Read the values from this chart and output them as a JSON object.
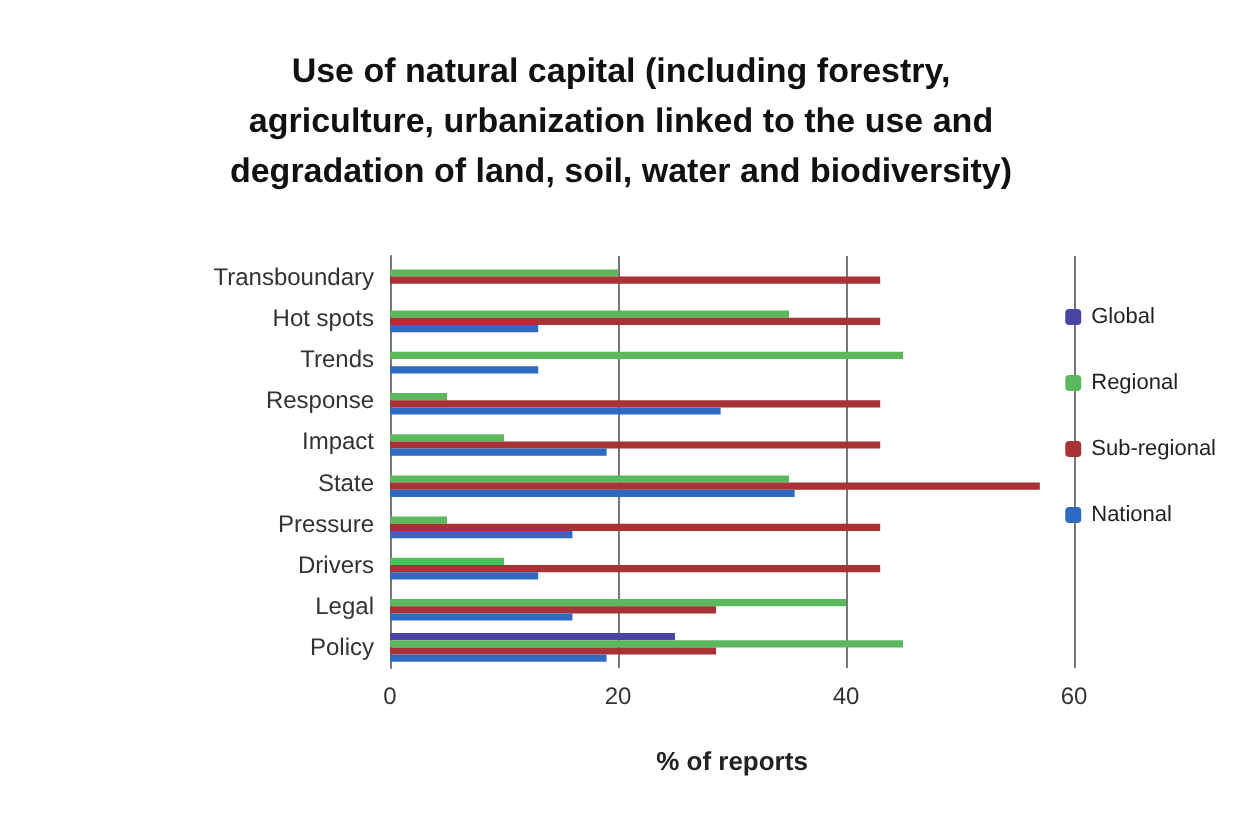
{
  "chart_data": {
    "type": "bar",
    "orientation": "horizontal",
    "title": "Use of natural capital (including forestry,\nagriculture, urbanization linked to the use and\ndegradation of land, soil, water and biodiversity)",
    "xlabel": "% of reports",
    "categories": [
      "Transboundary",
      "Hot spots",
      "Trends",
      "Response",
      "Impact",
      "State",
      "Pressure",
      "Drivers",
      "Legal",
      "Policy"
    ],
    "series": [
      {
        "name": "Global",
        "color": "#4a44a6",
        "values": [
          0,
          0,
          0,
          0,
          0,
          0,
          0,
          0,
          0,
          25
        ]
      },
      {
        "name": "Regional",
        "color": "#5cb85c",
        "values": [
          20,
          35,
          45,
          5,
          10,
          35,
          5,
          10,
          40,
          45
        ]
      },
      {
        "name": "Sub-regional",
        "color": "#a83236",
        "values": [
          43,
          43,
          0,
          43,
          43,
          57,
          43,
          43,
          28.6,
          28.6
        ]
      },
      {
        "name": "National",
        "color": "#2f6ac2",
        "values": [
          0,
          13,
          13,
          29,
          19,
          35.5,
          16,
          13,
          16,
          19
        ]
      }
    ],
    "xlim": [
      0,
      60
    ],
    "xticks": [
      0,
      20,
      40,
      60
    ],
    "grid": "x",
    "legend": "right"
  }
}
